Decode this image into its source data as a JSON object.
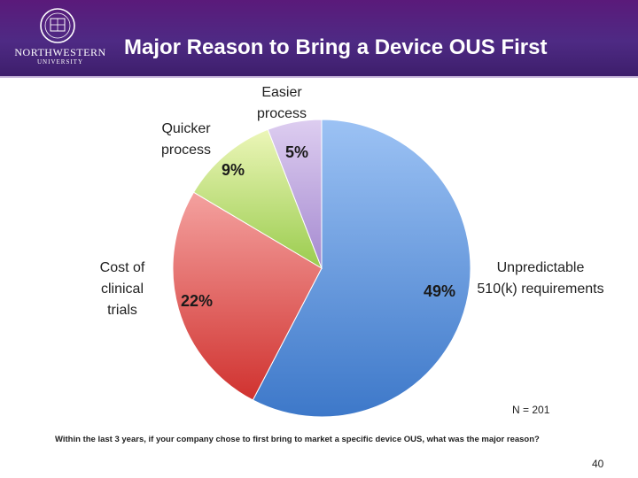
{
  "header": {
    "logo_text": "NORTHWESTERN",
    "logo_sub": "UNIVERSITY",
    "title": "Major Reason to Bring a Device OUS First"
  },
  "chart_data": {
    "type": "pie",
    "title": "Major Reason to Bring a Device OUS First",
    "slices": [
      {
        "label": "Unpredictable 510(k) requirements",
        "lines": [
          "Unpredictable",
          "510(k) requirements"
        ],
        "value": 49,
        "pct_label": "49%",
        "color": "#5b8fd6"
      },
      {
        "label": "Cost of clinical trials",
        "lines": [
          "Cost of",
          "clinical",
          "trials"
        ],
        "value": 22,
        "pct_label": "22%",
        "color": "#e85a58"
      },
      {
        "label": "Quicker process",
        "lines": [
          "Quicker",
          "process"
        ],
        "value": 9,
        "pct_label": "9%",
        "color": "#a8d468"
      },
      {
        "label": "Easier process",
        "lines": [
          "Easier",
          "process"
        ],
        "value": 5,
        "pct_label": "5%",
        "color": "#b49ad6"
      }
    ],
    "note": "N = 201"
  },
  "footnote": "Within the last 3 years, if your company chose to first bring to market a specific device OUS, what was the major reason?",
  "page_number": "40"
}
